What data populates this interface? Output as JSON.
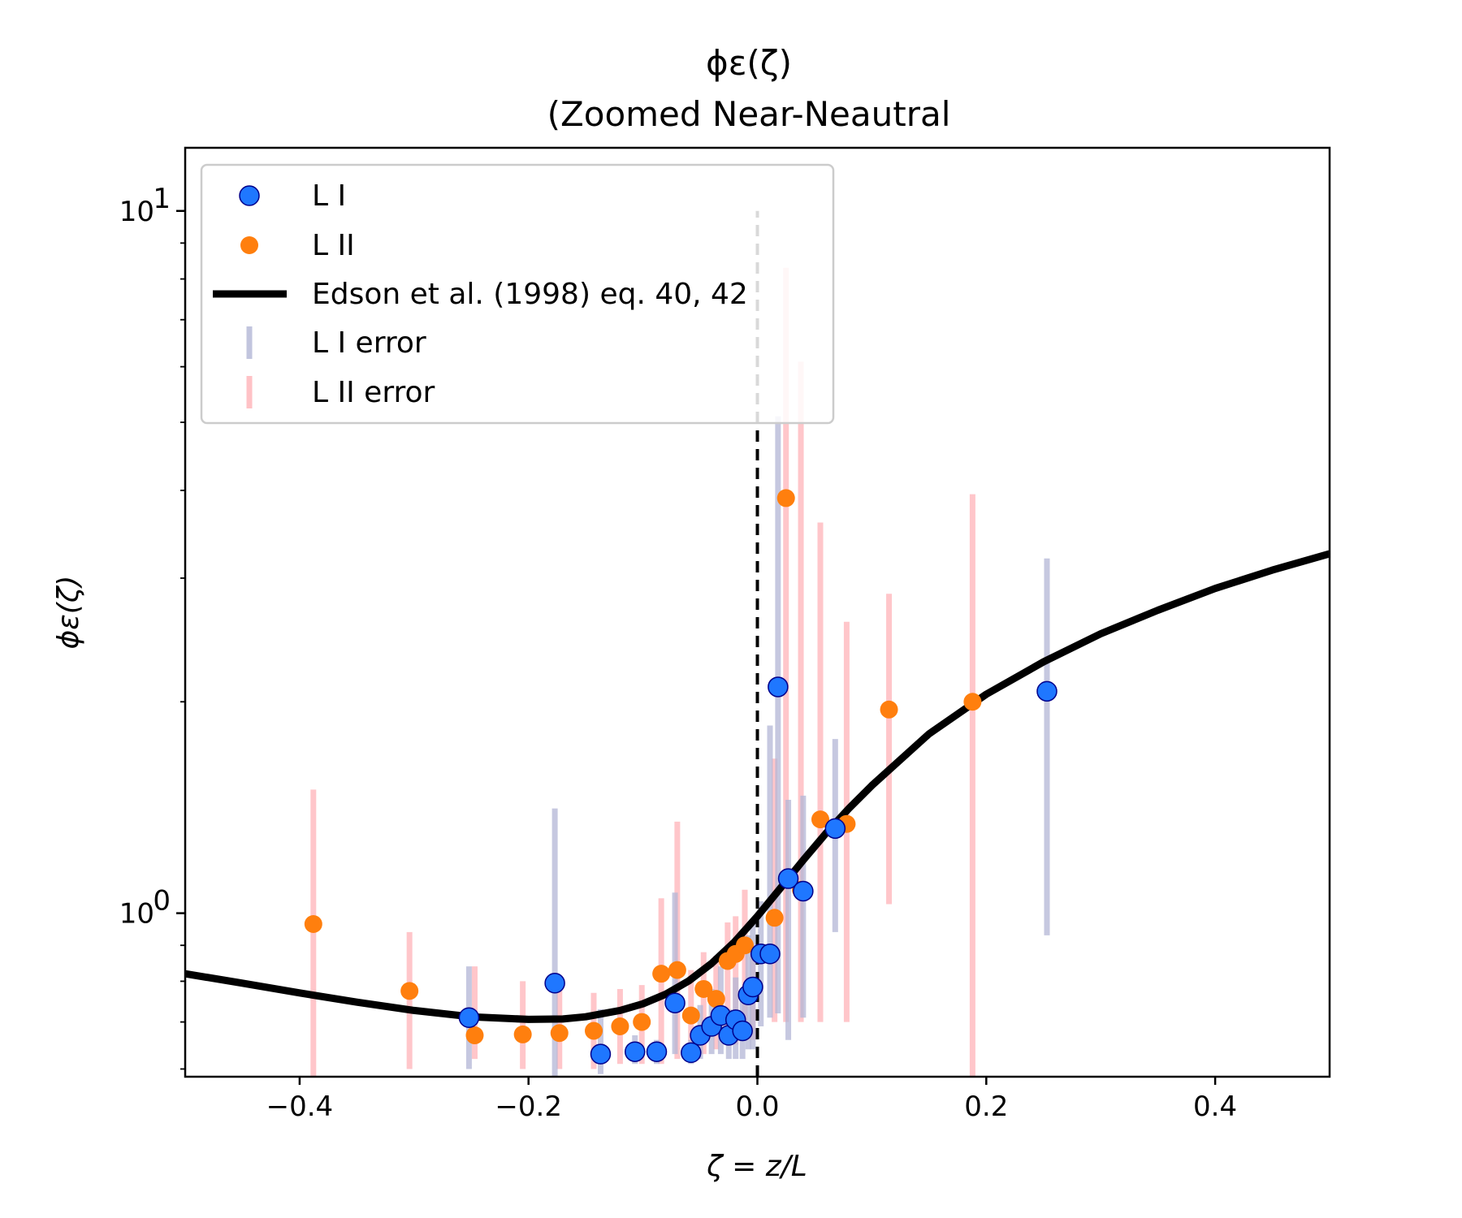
{
  "chart_data": {
    "type": "scatter",
    "title": "ϕε(ζ)",
    "subtitle": "(Zoomed Near-Neautral",
    "xlabel": "ζ = z/L",
    "ylabel": "ϕε(ζ)",
    "xlim": [
      -0.5,
      0.5
    ],
    "ylim": [
      0.585,
      12.3
    ],
    "yscale": "log",
    "grid": false,
    "legend_position": "upper-left",
    "x_ticks": [
      {
        "value": -0.4,
        "label": "−0.4"
      },
      {
        "value": -0.2,
        "label": "−0.2"
      },
      {
        "value": 0.0,
        "label": "0.0"
      },
      {
        "value": 0.2,
        "label": "0.2"
      },
      {
        "value": 0.4,
        "label": "0.4"
      }
    ],
    "y_ticks": [
      {
        "value": 1,
        "base": "10",
        "exp": "0"
      },
      {
        "value": 10,
        "base": "10",
        "exp": "1"
      }
    ],
    "reference_line": {
      "x": 0,
      "ymin": 0.585,
      "ymax": 10,
      "style": "dashed"
    },
    "legend": [
      {
        "key": "l1",
        "label": "L I"
      },
      {
        "key": "l2",
        "label": "L II"
      },
      {
        "key": "fit",
        "label": "Edson et al. (1998) eq. 40, 42"
      },
      {
        "key": "l1err",
        "label": "L I error"
      },
      {
        "key": "l2err",
        "label": "L II error"
      }
    ],
    "series": [
      {
        "name": "L I",
        "kind": "points",
        "color": "#1f77ff",
        "edge": "#00008b",
        "points": [
          {
            "x": -0.252,
            "y": 0.71,
            "lo": 0.6,
            "hi": 0.84
          },
          {
            "x": -0.177,
            "y": 0.795,
            "lo": 0.57,
            "hi": 1.41
          },
          {
            "x": -0.137,
            "y": 0.63,
            "lo": 0.59,
            "hi": 0.73
          },
          {
            "x": -0.107,
            "y": 0.635,
            "lo": 0.61,
            "hi": 0.67
          },
          {
            "x": -0.088,
            "y": 0.635,
            "lo": 0.61,
            "hi": 0.66
          },
          {
            "x": -0.072,
            "y": 0.745,
            "lo": 0.63,
            "hi": 1.07
          },
          {
            "x": -0.058,
            "y": 0.633,
            "lo": 0.61,
            "hi": 0.66
          },
          {
            "x": -0.05,
            "y": 0.67,
            "lo": 0.62,
            "hi": 0.74
          },
          {
            "x": -0.04,
            "y": 0.69,
            "lo": 0.63,
            "hi": 0.78
          },
          {
            "x": -0.032,
            "y": 0.715,
            "lo": 0.63,
            "hi": 0.84
          },
          {
            "x": -0.025,
            "y": 0.67,
            "lo": 0.62,
            "hi": 0.73
          },
          {
            "x": -0.019,
            "y": 0.705,
            "lo": 0.62,
            "hi": 0.81
          },
          {
            "x": -0.013,
            "y": 0.68,
            "lo": 0.62,
            "hi": 0.75
          },
          {
            "x": -0.008,
            "y": 0.765,
            "lo": 0.64,
            "hi": 0.93
          },
          {
            "x": -0.004,
            "y": 0.785,
            "lo": 0.64,
            "hi": 0.97
          },
          {
            "x": 0.003,
            "y": 0.875,
            "lo": 0.69,
            "hi": 1.04
          },
          {
            "x": 0.011,
            "y": 0.875,
            "lo": 0.71,
            "hi": 1.85
          },
          {
            "x": 0.018,
            "y": 2.1,
            "lo": 0.72,
            "hi": 5.1
          },
          {
            "x": 0.027,
            "y": 1.12,
            "lo": 0.66,
            "hi": 1.45
          },
          {
            "x": 0.04,
            "y": 1.075,
            "lo": 0.71,
            "hi": 1.47
          },
          {
            "x": 0.068,
            "y": 1.32,
            "lo": 0.94,
            "hi": 1.77
          },
          {
            "x": 0.253,
            "y": 2.07,
            "lo": 0.93,
            "hi": 3.2
          }
        ]
      },
      {
        "name": "L II",
        "kind": "points",
        "color": "#ff7f0e",
        "points": [
          {
            "x": -0.388,
            "y": 0.965,
            "lo": 0.56,
            "hi": 1.5
          },
          {
            "x": -0.304,
            "y": 0.775,
            "lo": 0.6,
            "hi": 0.94
          },
          {
            "x": -0.247,
            "y": 0.67,
            "lo": 0.62,
            "hi": 0.84
          },
          {
            "x": -0.205,
            "y": 0.672,
            "lo": 0.6,
            "hi": 0.8
          },
          {
            "x": -0.173,
            "y": 0.675,
            "lo": 0.6,
            "hi": 0.79
          },
          {
            "x": -0.143,
            "y": 0.68,
            "lo": 0.6,
            "hi": 0.77
          },
          {
            "x": -0.12,
            "y": 0.69,
            "lo": 0.61,
            "hi": 0.78
          },
          {
            "x": -0.101,
            "y": 0.7,
            "lo": 0.61,
            "hi": 0.79
          },
          {
            "x": -0.084,
            "y": 0.82,
            "lo": 0.61,
            "hi": 1.05
          },
          {
            "x": -0.07,
            "y": 0.83,
            "lo": 0.62,
            "hi": 1.35
          },
          {
            "x": -0.058,
            "y": 0.715,
            "lo": 0.62,
            "hi": 0.83
          },
          {
            "x": -0.047,
            "y": 0.78,
            "lo": 0.63,
            "hi": 0.88
          },
          {
            "x": -0.036,
            "y": 0.755,
            "lo": 0.64,
            "hi": 0.87
          },
          {
            "x": -0.026,
            "y": 0.855,
            "lo": 0.66,
            "hi": 0.97
          },
          {
            "x": -0.019,
            "y": 0.875,
            "lo": 0.65,
            "hi": 0.99
          },
          {
            "x": -0.011,
            "y": 0.9,
            "lo": 0.69,
            "hi": 1.08
          },
          {
            "x": -0.004,
            "y": 0.785,
            "lo": 0.66,
            "hi": 0.9
          },
          {
            "x": 0.015,
            "y": 0.985,
            "lo": 0.7,
            "hi": 1.66
          },
          {
            "x": 0.025,
            "y": 3.9,
            "lo": 0.7,
            "hi": 8.3
          },
          {
            "x": 0.038,
            "y": 1.08,
            "lo": 0.7,
            "hi": 6.1
          },
          {
            "x": 0.055,
            "y": 1.36,
            "lo": 0.7,
            "hi": 3.6
          },
          {
            "x": 0.078,
            "y": 1.34,
            "lo": 0.7,
            "hi": 2.6
          },
          {
            "x": 0.115,
            "y": 1.95,
            "lo": 1.03,
            "hi": 2.85
          },
          {
            "x": 0.188,
            "y": 2.0,
            "lo": 0.56,
            "hi": 3.95
          }
        ]
      },
      {
        "name": "Edson et al. (1998) eq. 40, 42",
        "kind": "line",
        "color": "#000000",
        "x": [
          -0.5,
          -0.45,
          -0.4,
          -0.35,
          -0.3,
          -0.25,
          -0.2,
          -0.17,
          -0.15,
          -0.12,
          -0.1,
          -0.08,
          -0.06,
          -0.04,
          -0.02,
          0.0,
          0.02,
          0.04,
          0.06,
          0.08,
          0.1,
          0.15,
          0.2,
          0.25,
          0.3,
          0.35,
          0.4,
          0.45,
          0.5
        ],
        "y": [
          0.82,
          0.795,
          0.77,
          0.747,
          0.727,
          0.712,
          0.706,
          0.707,
          0.712,
          0.727,
          0.743,
          0.767,
          0.801,
          0.848,
          0.91,
          0.99,
          1.085,
          1.19,
          1.3,
          1.41,
          1.52,
          1.8,
          2.05,
          2.28,
          2.5,
          2.7,
          2.9,
          3.08,
          3.25
        ]
      }
    ]
  }
}
